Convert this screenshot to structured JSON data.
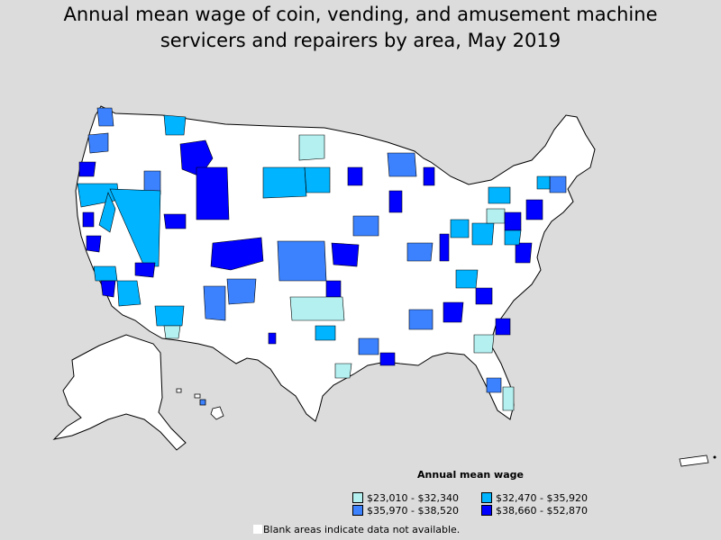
{
  "title": {
    "line1": "Annual mean wage of coin, vending, and amusement machine",
    "line2": "servicers and repairers by area, May 2019"
  },
  "legend": {
    "title": "Annual mean wage",
    "items": [
      {
        "label": "$23,010 - $32,340",
        "color": "#b4f0f0"
      },
      {
        "label": "$32,470 - $35,920",
        "color": "#00b4ff"
      },
      {
        "label": "$35,970 - $38,520",
        "color": "#3c82ff"
      },
      {
        "label": "$38,660 - $52,870",
        "color": "#0000ff"
      }
    ]
  },
  "note": "Blank areas indicate data not available.",
  "colors": {
    "background": "#dcdcdc",
    "no_data": "#ffffff",
    "border": "#000000"
  }
}
